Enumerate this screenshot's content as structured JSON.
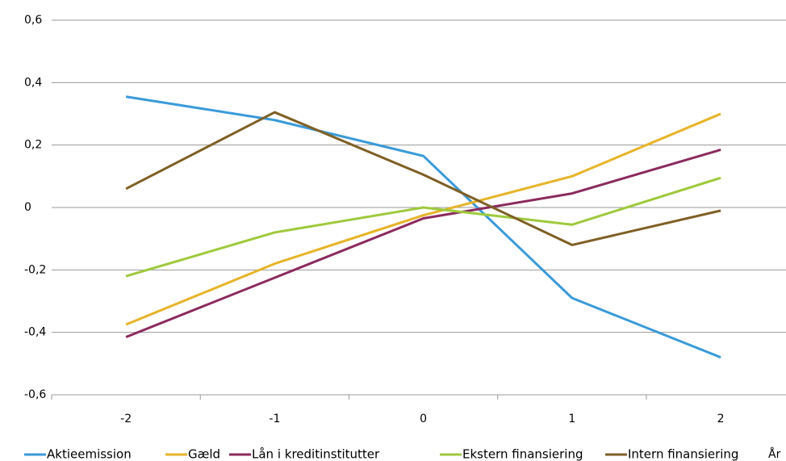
{
  "chart_data": {
    "type": "line",
    "x_label": "År",
    "categories": [
      "-2",
      "-1",
      "0",
      "1",
      "2"
    ],
    "series": [
      {
        "name": "Aktieemission",
        "color": "#3a9ad9",
        "values": [
          0.355,
          0.28,
          0.165,
          -0.29,
          -0.48
        ]
      },
      {
        "name": "Gæld",
        "color": "#e6b429",
        "values": [
          -0.375,
          -0.18,
          -0.025,
          0.1,
          0.3
        ]
      },
      {
        "name": "Lån i kreditinstitutter",
        "color": "#8b2a5e",
        "values": [
          -0.415,
          -0.225,
          -0.035,
          0.045,
          0.185
        ]
      },
      {
        "name": "Ekstern finansiering",
        "color": "#9ec93c",
        "values": [
          -0.22,
          -0.08,
          0,
          -0.055,
          0.095
        ]
      },
      {
        "name": "Intern finansiering",
        "color": "#7f5f25",
        "values": [
          0.06,
          0.305,
          0.105,
          -0.12,
          -0.01
        ]
      }
    ],
    "ylim": [
      -0.6,
      0.6
    ],
    "yticks": [
      {
        "value": -0.6,
        "label": "-0,6"
      },
      {
        "value": -0.4,
        "label": "-0,4"
      },
      {
        "value": -0.2,
        "label": "-0,2"
      },
      0,
      {
        "value": 0.2,
        "label": "0,2"
      },
      {
        "value": 0.4,
        "label": "0,4"
      },
      {
        "value": 0.6,
        "label": "0,6"
      }
    ],
    "grid": true,
    "legend": "bottom"
  }
}
